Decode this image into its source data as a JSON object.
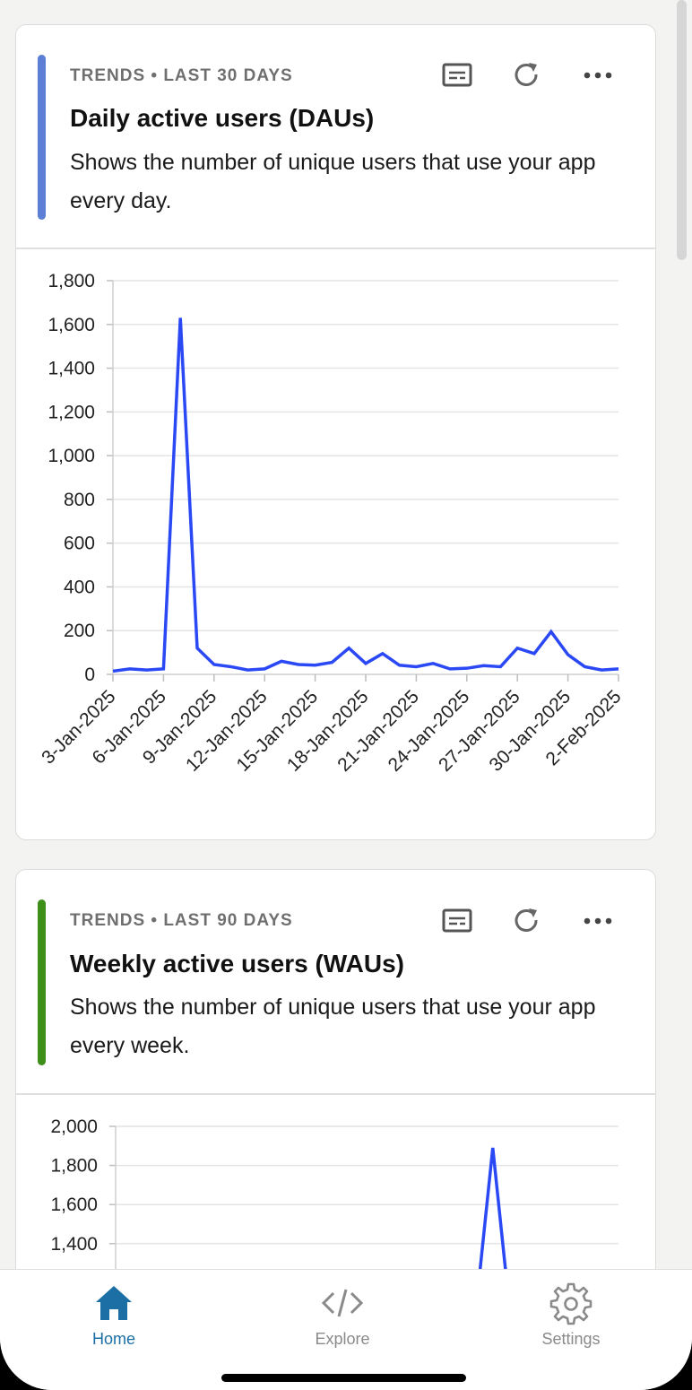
{
  "cards": [
    {
      "eyebrow": "TRENDS • LAST 30 DAYS",
      "title": "Daily active users (DAUs)",
      "description": "Shows the number of unique users that use your app every day.",
      "accent_color": "#5b7fd4",
      "icons": [
        "caption-icon",
        "refresh-icon",
        "more-icon"
      ]
    },
    {
      "eyebrow": "TRENDS • LAST 90 DAYS",
      "title": "Weekly active users (WAUs)",
      "description": "Shows the number of unique users that use your app every week.",
      "accent_color": "#3e8e1a",
      "icons": [
        "caption-icon",
        "refresh-icon",
        "more-icon"
      ]
    }
  ],
  "chart_data": [
    {
      "type": "line",
      "series_color": "#2a49f5",
      "ylim": [
        0,
        1800
      ],
      "yticks": [
        "1,800",
        "1,600",
        "1,400",
        "1,200",
        "1,000",
        "800",
        "600",
        "400",
        "200",
        "0"
      ],
      "ytick_values": [
        1800,
        1600,
        1400,
        1200,
        1000,
        800,
        600,
        400,
        200,
        0
      ],
      "xtick_labels": [
        "3-Jan-2025",
        "6-Jan-2025",
        "9-Jan-2025",
        "12-Jan-2025",
        "15-Jan-2025",
        "18-Jan-2025",
        "21-Jan-2025",
        "24-Jan-2025",
        "27-Jan-2025",
        "30-Jan-2025",
        "2-Feb-2025"
      ],
      "x": [
        "3-Jan-2025",
        "4-Jan-2025",
        "5-Jan-2025",
        "6-Jan-2025",
        "7-Jan-2025",
        "8-Jan-2025",
        "9-Jan-2025",
        "10-Jan-2025",
        "11-Jan-2025",
        "12-Jan-2025",
        "13-Jan-2025",
        "14-Jan-2025",
        "15-Jan-2025",
        "16-Jan-2025",
        "17-Jan-2025",
        "18-Jan-2025",
        "19-Jan-2025",
        "20-Jan-2025",
        "21-Jan-2025",
        "22-Jan-2025",
        "23-Jan-2025",
        "24-Jan-2025",
        "25-Jan-2025",
        "26-Jan-2025",
        "27-Jan-2025",
        "28-Jan-2025",
        "29-Jan-2025",
        "30-Jan-2025",
        "31-Jan-2025",
        "1-Feb-2025",
        "2-Feb-2025"
      ],
      "values": [
        15,
        25,
        20,
        25,
        1630,
        120,
        45,
        35,
        20,
        25,
        60,
        45,
        42,
        55,
        120,
        50,
        95,
        42,
        35,
        50,
        25,
        28,
        40,
        35,
        120,
        95,
        195,
        90,
        35,
        20,
        25
      ],
      "grid": true
    },
    {
      "type": "line",
      "series_color": "#2a49f5",
      "ylim": [
        0,
        2000
      ],
      "yticks": [
        "2,000",
        "1,800",
        "1,600",
        "1,400"
      ],
      "ytick_values": [
        2000,
        1800,
        1600,
        1400
      ],
      "visible_ymin": 1280,
      "xlim": [
        0,
        1
      ],
      "points": [
        [
          0.72,
          1150
        ],
        [
          0.75,
          1890
        ],
        [
          0.78,
          1150
        ]
      ],
      "grid": true
    }
  ],
  "tabs": [
    {
      "label": "Home",
      "icon": "home-icon",
      "active": true
    },
    {
      "label": "Explore",
      "icon": "code-icon",
      "active": false
    },
    {
      "label": "Settings",
      "icon": "gear-icon",
      "active": false
    }
  ],
  "colors": {
    "active_tab": "#1b6fa5",
    "inactive_tab": "#8a8a8a"
  }
}
